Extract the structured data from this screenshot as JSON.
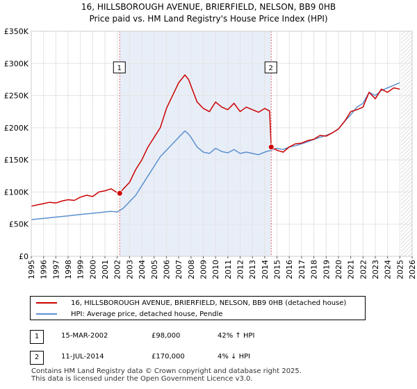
{
  "title": {
    "line1": "16, HILLSBOROUGH AVENUE, BRIERFIELD, NELSON, BB9 0HB",
    "line2": "Price paid vs. HM Land Registry's House Price Index (HPI)"
  },
  "colors": {
    "price": "#cc0000",
    "hpi": "#5b8fcf",
    "shade": "#e8eef8"
  },
  "chart_data": {
    "type": "line",
    "xlim": [
      1995,
      2026
    ],
    "ylim": [
      0,
      350000
    ],
    "y_ticks": [
      0,
      50000,
      100000,
      150000,
      200000,
      250000,
      300000,
      350000
    ],
    "y_tick_labels": [
      "£0",
      "£50K",
      "£100K",
      "£150K",
      "£200K",
      "£250K",
      "£300K",
      "£350K"
    ],
    "x_ticks": [
      "1995",
      "1996",
      "1997",
      "1998",
      "1999",
      "2000",
      "2001",
      "2002",
      "2003",
      "2004",
      "2005",
      "2006",
      "2007",
      "2008",
      "2009",
      "2010",
      "2011",
      "2012",
      "2013",
      "2014",
      "2015",
      "2016",
      "2017",
      "2018",
      "2019",
      "2020",
      "2021",
      "2022",
      "2023",
      "2024",
      "2025",
      "2026"
    ],
    "shaded_region": [
      2002.2,
      2014.53
    ],
    "hatch_from": 2025.1,
    "series": [
      {
        "name": "16, HILLSBOROUGH AVENUE, BRIERFIELD, NELSON, BB9 0HB (detached house)",
        "x": [
          1995,
          1995.5,
          1996,
          1996.5,
          1997,
          1997.5,
          1998,
          1998.5,
          1999,
          1999.5,
          2000,
          2000.5,
          2001,
          2001.5,
          2002,
          2002.2,
          2002.5,
          2003,
          2003.5,
          2004,
          2004.5,
          2005,
          2005.5,
          2006,
          2006.5,
          2007,
          2007.5,
          2007.8,
          2008,
          2008.5,
          2009,
          2009.5,
          2010,
          2010.5,
          2011,
          2011.5,
          2012,
          2012.5,
          2013,
          2013.5,
          2014,
          2014.4,
          2014.53,
          2015,
          2015.5,
          2016,
          2016.5,
          2017,
          2017.5,
          2018,
          2018.5,
          2019,
          2019.5,
          2020,
          2020.5,
          2021,
          2021.5,
          2022,
          2022.5,
          2023,
          2023.5,
          2024,
          2024.5,
          2025
        ],
        "y": [
          78000,
          80000,
          82000,
          84000,
          83000,
          86000,
          88000,
          87000,
          92000,
          95000,
          93000,
          100000,
          102000,
          105000,
          99000,
          98000,
          105000,
          115000,
          135000,
          150000,
          170000,
          185000,
          200000,
          230000,
          250000,
          270000,
          282000,
          275000,
          265000,
          240000,
          230000,
          225000,
          240000,
          232000,
          228000,
          238000,
          225000,
          232000,
          228000,
          224000,
          230000,
          226000,
          170000,
          165000,
          162000,
          170000,
          175000,
          176000,
          180000,
          182000,
          188000,
          187000,
          192000,
          198000,
          210000,
          225000,
          228000,
          232000,
          255000,
          245000,
          260000,
          255000,
          262000,
          260000
        ]
      },
      {
        "name": "HPI: Average price, detached house, Pendle",
        "x": [
          1995,
          1995.5,
          1996,
          1996.5,
          1997,
          1997.5,
          1998,
          1998.5,
          1999,
          1999.5,
          2000,
          2000.5,
          2001,
          2001.5,
          2002,
          2002.5,
          2003,
          2003.5,
          2004,
          2004.5,
          2005,
          2005.5,
          2006,
          2006.5,
          2007,
          2007.5,
          2007.8,
          2008,
          2008.5,
          2009,
          2009.5,
          2010,
          2010.5,
          2011,
          2011.5,
          2012,
          2012.5,
          2013,
          2013.5,
          2014,
          2014.5,
          2015,
          2015.5,
          2016,
          2016.5,
          2017,
          2017.5,
          2018,
          2018.5,
          2019,
          2019.5,
          2020,
          2020.5,
          2021,
          2021.5,
          2022,
          2022.5,
          2023,
          2023.5,
          2024,
          2024.5,
          2025
        ],
        "y": [
          57000,
          58000,
          59000,
          60000,
          61000,
          62000,
          63000,
          64000,
          65000,
          66000,
          67000,
          68000,
          69000,
          70000,
          69000,
          75000,
          85000,
          95000,
          110000,
          125000,
          140000,
          155000,
          165000,
          175000,
          185000,
          195000,
          190000,
          185000,
          170000,
          162000,
          160000,
          168000,
          163000,
          161000,
          166000,
          160000,
          162000,
          160000,
          158000,
          162000,
          165000,
          168000,
          166000,
          170000,
          172000,
          175000,
          178000,
          182000,
          185000,
          188000,
          192000,
          198000,
          210000,
          220000,
          232000,
          238000,
          255000,
          250000,
          258000,
          262000,
          266000,
          270000
        ]
      }
    ],
    "markers": [
      {
        "label": "1",
        "x": 2002.2,
        "y": 98000
      },
      {
        "label": "2",
        "x": 2014.53,
        "y": 170000
      }
    ]
  },
  "legend": {
    "price_label": "16, HILLSBOROUGH AVENUE, BRIERFIELD, NELSON, BB9 0HB (detached house)",
    "hpi_label": "HPI: Average price, detached house, Pendle"
  },
  "transactions": [
    {
      "num": "1",
      "date": "15-MAR-2002",
      "price": "£98,000",
      "hpi": "42% ↑ HPI"
    },
    {
      "num": "2",
      "date": "11-JUL-2014",
      "price": "£170,000",
      "hpi": "4% ↓ HPI"
    }
  ],
  "footer": {
    "line1": "Contains HM Land Registry data © Crown copyright and database right 2025.",
    "line2": "This data is licensed under the Open Government Licence v3.0."
  }
}
